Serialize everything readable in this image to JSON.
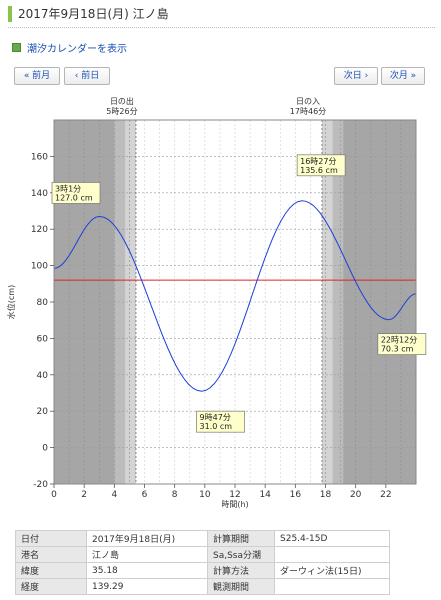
{
  "header": {
    "title": "2017年9月18日(月) 江ノ島"
  },
  "calendar_link": {
    "label": "潮汐カレンダーを表示"
  },
  "nav": {
    "prev_month": "« 前月",
    "prev_day": "‹ 前日",
    "next_day": "次日 ›",
    "next_month": "次月 »"
  },
  "chart_data": {
    "type": "line",
    "xlabel": "時間(h)",
    "ylabel": "水位(cm)",
    "xlim": [
      0,
      24
    ],
    "ylim": [
      -20,
      180
    ],
    "xticks": [
      0,
      2,
      4,
      6,
      8,
      10,
      12,
      14,
      16,
      18,
      20,
      22
    ],
    "yticks": [
      -20,
      0,
      20,
      40,
      60,
      80,
      100,
      120,
      140,
      160
    ],
    "sunrise": {
      "label": "日の出",
      "time": "5時26分",
      "hour": 5.433
    },
    "sunset": {
      "label": "日の入",
      "time": "17時46分",
      "hour": 17.767
    },
    "reference_line": 92,
    "series": [
      {
        "values": [
          {
            "x": 0,
            "y": 98.5
          },
          {
            "x": 3.017,
            "y": 127.0
          },
          {
            "x": 9.783,
            "y": 31.0
          },
          {
            "x": 16.45,
            "y": 135.6
          },
          {
            "x": 22.2,
            "y": 70.3
          },
          {
            "x": 24,
            "y": 84.5
          }
        ]
      }
    ],
    "annotations": [
      {
        "time": "3時1分",
        "level": "127.0 cm",
        "x": 3.017,
        "y": 127.0
      },
      {
        "time": "9時47分",
        "level": "31.0 cm",
        "x": 9.783,
        "y": 31.0
      },
      {
        "time": "16時27分",
        "level": "135.6 cm",
        "x": 16.45,
        "y": 135.6
      },
      {
        "time": "22時12分",
        "level": "70.3 cm",
        "x": 22.2,
        "y": 70.3
      }
    ],
    "colors": {
      "curve": "#1f3fd8",
      "reference": "#e02020",
      "night": "#a6a6a6",
      "twilight1": "#bcbcbc",
      "twilight2": "#d4d4d4",
      "label_bg": "#ffffcc"
    }
  },
  "info_table": {
    "rows": [
      {
        "l1": "日付",
        "v1": "2017年9月18日(月)",
        "l2": "計算期間",
        "v2": "S25.4-15D"
      },
      {
        "l1": "港名",
        "v1": "江ノ島",
        "l2": "Sa,Ssa分潮",
        "v2": ""
      },
      {
        "l1": "緯度",
        "v1": "35.18",
        "l2": "計算方法",
        "v2": "ダーウィン法(15日)"
      },
      {
        "l1": "経度",
        "v1": "139.29",
        "l2": "観測期間",
        "v2": ""
      }
    ]
  }
}
